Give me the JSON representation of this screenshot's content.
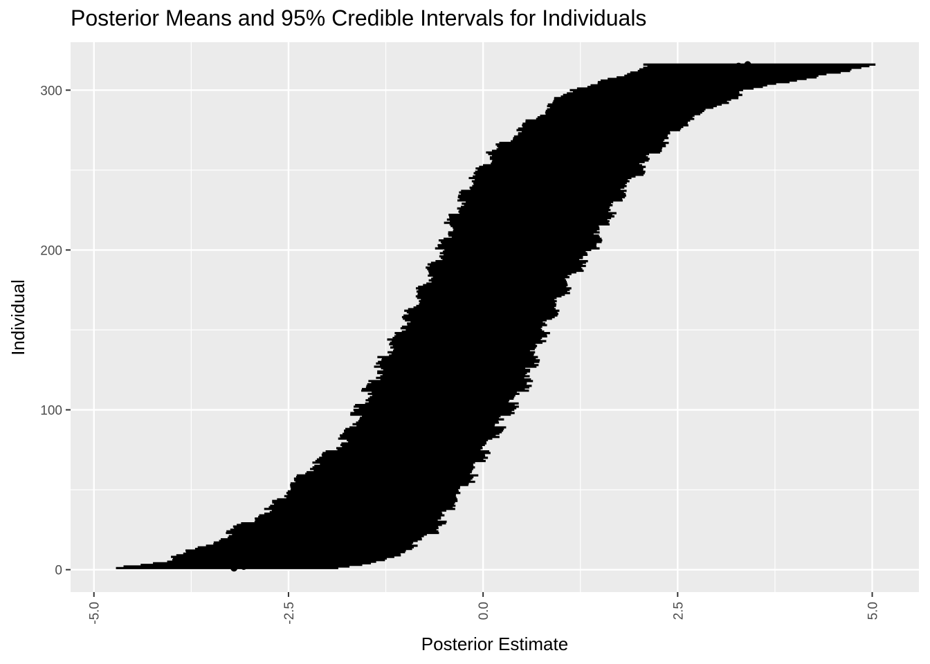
{
  "chart_data": {
    "type": "errorbar",
    "title": "Posterior Means and 95% Credible Intervals for Individuals",
    "xlabel": "Posterior Estimate",
    "ylabel": "Individual",
    "xlim": [
      -5.3,
      5.6
    ],
    "ylim": [
      -14,
      330
    ],
    "x_ticks": [
      -5.0,
      -2.5,
      0.0,
      2.5,
      5.0
    ],
    "x_tick_labels": [
      "-5.0",
      "-2.5",
      "0.0",
      "2.5",
      "5.0"
    ],
    "y_ticks": [
      0,
      100,
      200,
      300
    ],
    "y_tick_labels": [
      "0",
      "100",
      "200",
      "300"
    ],
    "grid": true,
    "n_individuals": 316,
    "interval_width_approx": 4.0,
    "mean_profile_samples": {
      "individual": [
        1,
        5,
        20,
        40,
        60,
        80,
        100,
        120,
        140,
        160,
        180,
        200,
        220,
        240,
        260,
        280,
        300,
        310,
        316
      ],
      "posterior_mean": [
        -3.2,
        -2.7,
        -2.1,
        -1.55,
        -1.15,
        -0.85,
        -0.6,
        -0.35,
        -0.15,
        0.05,
        0.25,
        0.45,
        0.65,
        0.9,
        1.2,
        1.55,
        2.1,
        2.7,
        3.4
      ]
    },
    "interval_bounds_samples": {
      "individual": [
        1,
        5,
        20,
        40,
        60,
        80,
        100,
        120,
        140,
        160,
        180,
        200,
        220,
        240,
        260,
        280,
        300,
        310,
        316
      ],
      "lower": [
        -4.8,
        -4.1,
        -3.35,
        -2.7,
        -2.3,
        -1.8,
        -1.6,
        -1.4,
        -1.2,
        -0.95,
        -0.75,
        -0.55,
        -0.4,
        -0.2,
        0.1,
        0.6,
        1.1,
        1.9,
        2.05
      ],
      "upper": [
        -1.8,
        -1.3,
        -0.7,
        -0.4,
        -0.1,
        0.1,
        0.35,
        0.6,
        0.7,
        0.9,
        1.1,
        1.4,
        1.6,
        1.85,
        2.2,
        2.6,
        3.4,
        4.4,
        5.1
      ]
    },
    "colors": {
      "panel": "#ebebeb",
      "grid": "#ffffff",
      "marks": "#000000",
      "tick_text": "#4d4d4d",
      "tick_mark": "#333333"
    }
  }
}
